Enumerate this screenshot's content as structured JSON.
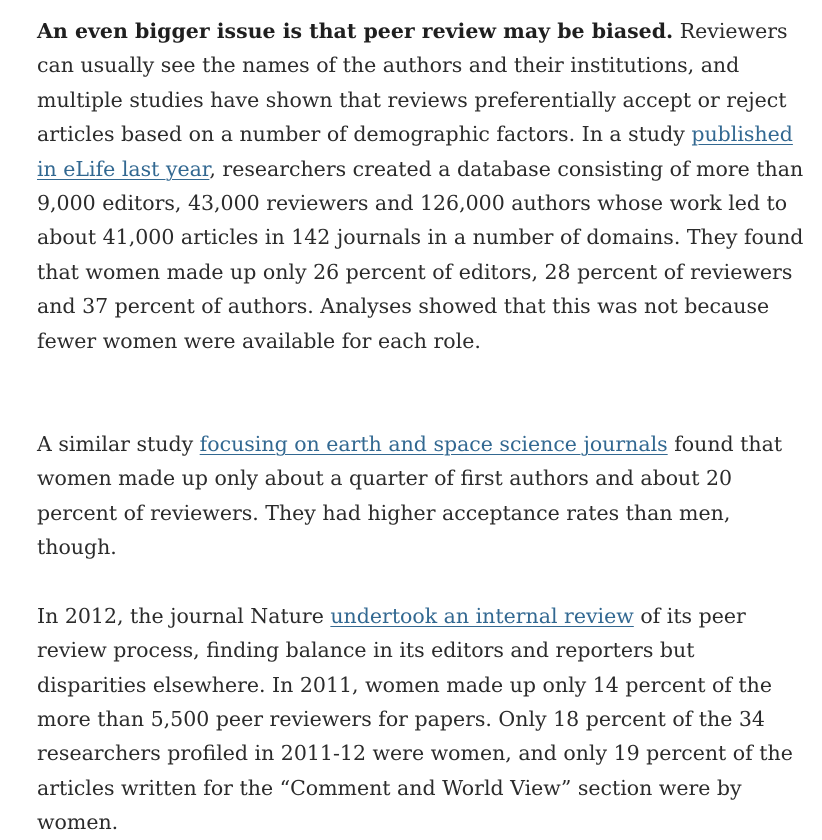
{
  "article": {
    "p1": {
      "lead": "An even bigger issue is that peer review may be biased.",
      "text_a": " Reviewers can usually see the names of the authors and their institutions, and multiple studies have shown that reviews preferentially accept or reject articles based on a number of demographic factors. In a study ",
      "link": "published in eLife last year",
      "text_b": ", researchers created a database consisting of more than 9,000 editors, 43,000 reviewers and 126,000 authors whose work led to about 41,000 articles in 142 journals in a number of domains. They found that women made up only 26 percent of editors, 28 percent of reviewers and 37 percent of authors. Analyses showed that this was not because fewer women were available for each role."
    },
    "p2": {
      "text_a": "A similar study ",
      "link": "focusing on earth and space science journals",
      "text_b": " found that women made up only about a quarter of first authors and about 20 percent of reviewers. They had higher acceptance rates than men, though."
    },
    "p3": {
      "text_a": "In 2012, the journal Nature ",
      "link": "undertook an internal review",
      "text_b": " of its peer review process, finding balance in its editors and reporters but disparities elsewhere. In 2011, women made up only 14 percent of the more than 5,500 peer reviewers for papers. Only 18 percent of the 34 researchers profiled in 2011-12 were women, and only 19 percent of the articles written for the “Comment and World View” section were by women."
    },
    "colors": {
      "text": "#2b2b2b",
      "link": "#326891",
      "background": "#ffffff"
    }
  }
}
